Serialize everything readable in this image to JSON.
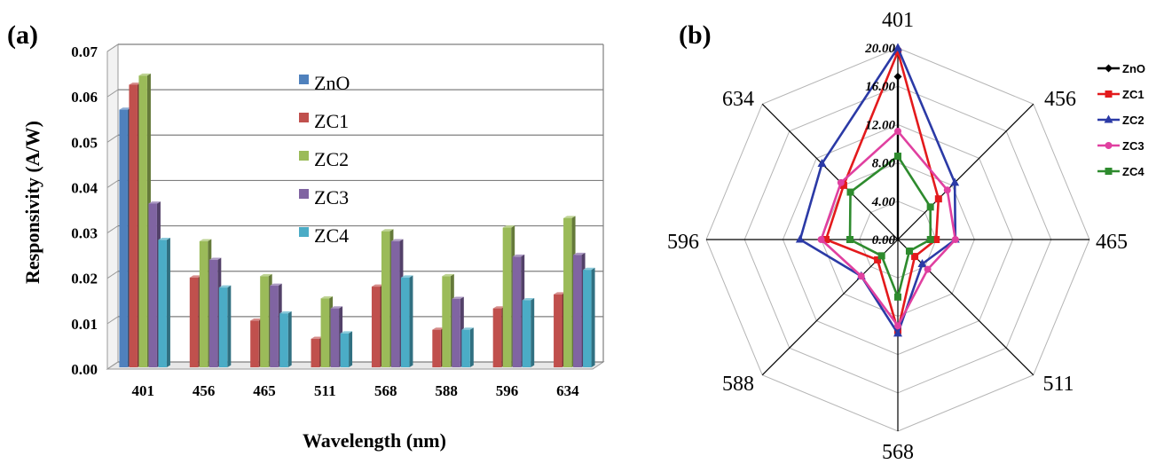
{
  "chart_data": [
    {
      "panel": "(a)",
      "type": "bar",
      "categories": [
        "401",
        "456",
        "465",
        "511",
        "568",
        "588",
        "596",
        "634"
      ],
      "series": [
        {
          "name": "ZnO",
          "color": "#4f81bd",
          "values": [
            0.056,
            0,
            0,
            0,
            0,
            0,
            0,
            0
          ]
        },
        {
          "name": "ZC1",
          "color": "#c0504d",
          "values": [
            0.0615,
            0.019,
            0.0095,
            0.0055,
            0.017,
            0.0075,
            0.0122,
            0.0153
          ]
        },
        {
          "name": "ZC2",
          "color": "#9bbb59",
          "values": [
            0.0635,
            0.027,
            0.0193,
            0.0144,
            0.0292,
            0.0193,
            0.03,
            0.0321
          ]
        },
        {
          "name": "ZC3",
          "color": "#8064a2",
          "values": [
            0.0353,
            0.0229,
            0.0172,
            0.0122,
            0.027,
            0.0143,
            0.0236,
            0.024
          ]
        },
        {
          "name": "ZC4",
          "color": "#4bacc6",
          "values": [
            0.0273,
            0.0168,
            0.0111,
            0.0067,
            0.019,
            0.0075,
            0.014,
            0.0207
          ]
        }
      ],
      "yticks": [
        "0.00",
        "0.01",
        "0.02",
        "0.03",
        "0.04",
        "0.05",
        "0.06",
        "0.07"
      ],
      "ylim": [
        0,
        0.07
      ],
      "xlabel": "Wavelength (nm)",
      "ylabel": "Responsivity (A/W)",
      "grid": true,
      "legend_position": "inside-top-right"
    },
    {
      "panel": "(b)",
      "type": "radar",
      "categories": [
        "401",
        "456",
        "465",
        "511",
        "568",
        "588",
        "596",
        "634"
      ],
      "series": [
        {
          "name": "ZnO",
          "color": "#000000",
          "marker": "diamond",
          "values": [
            17.0,
            0,
            0,
            0,
            0,
            0,
            0,
            0
          ]
        },
        {
          "name": "ZC1",
          "color": "#e31a1c",
          "marker": "square",
          "values": [
            19.6,
            6.0,
            4.0,
            2.5,
            9.5,
            3.0,
            7.5,
            8.0
          ]
        },
        {
          "name": "ZC2",
          "color": "#2b3aa6",
          "marker": "triangle",
          "values": [
            20.0,
            8.4,
            6.0,
            3.6,
            9.8,
            5.4,
            10.2,
            11.2
          ]
        },
        {
          "name": "ZC3",
          "color": "#e040a0",
          "marker": "circle",
          "values": [
            11.3,
            7.3,
            6.0,
            4.4,
            9.0,
            5.4,
            8.0,
            8.4
          ]
        },
        {
          "name": "ZC4",
          "color": "#2e8b2e",
          "marker": "square",
          "values": [
            8.7,
            4.8,
            3.4,
            1.7,
            6.0,
            2.4,
            5.0,
            7.0
          ]
        }
      ],
      "rticks": [
        "0.00",
        "4.00",
        "8.00",
        "12.00",
        "16.00",
        "20.00"
      ],
      "rlim": [
        0,
        20
      ],
      "grid": true,
      "legend_position": "right"
    }
  ]
}
